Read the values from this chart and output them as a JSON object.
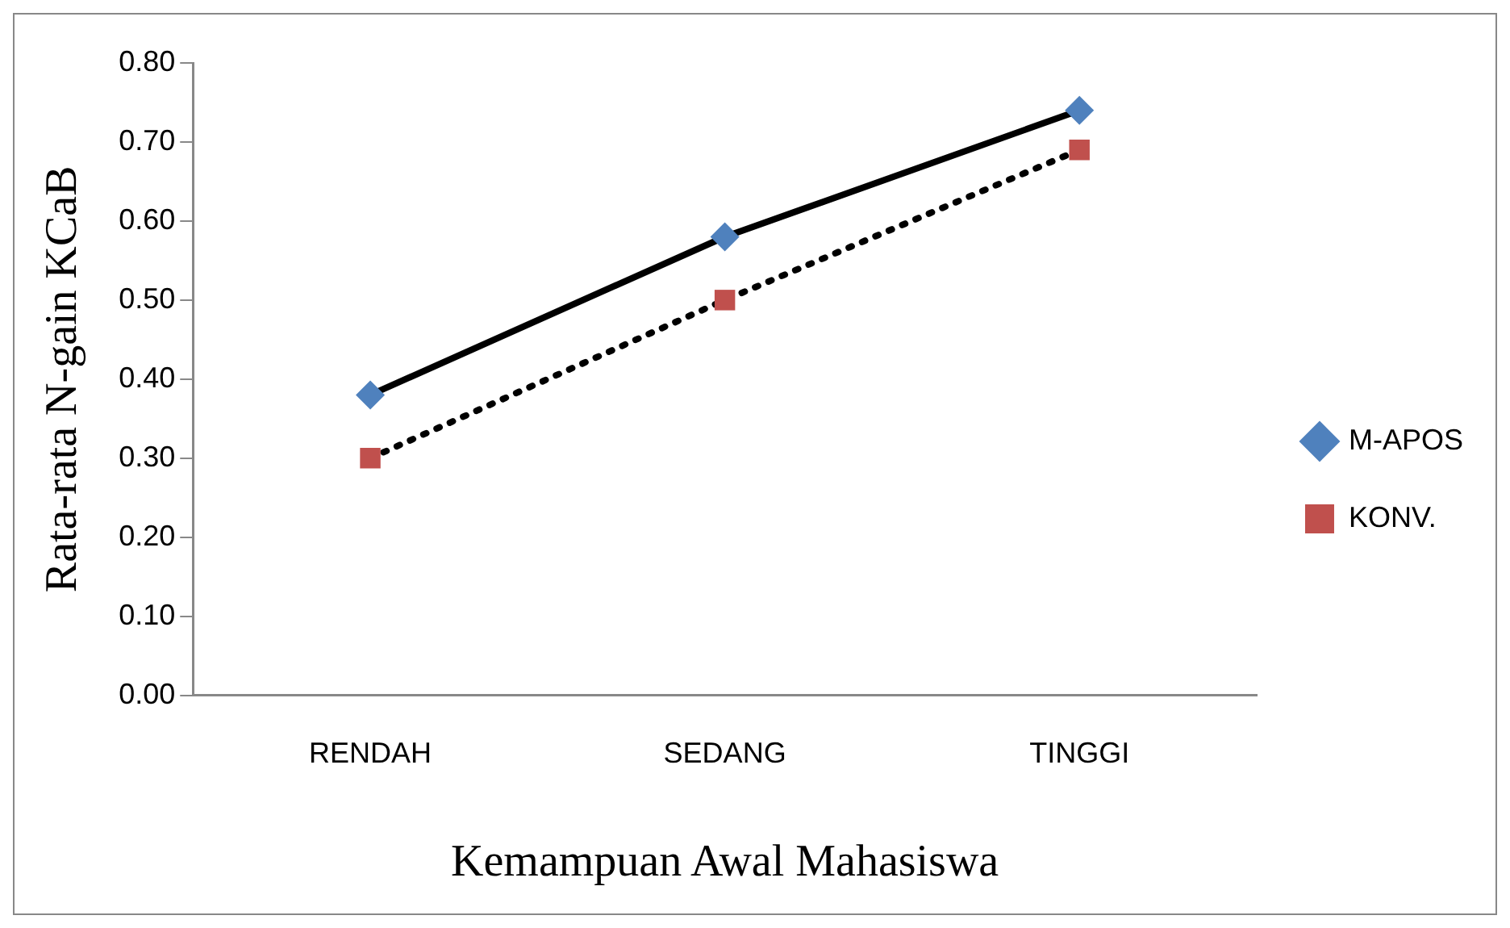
{
  "chart_data": {
    "type": "line",
    "xlabel": "Kemampuan Awal Mahasiswa",
    "ylabel": "Rata-rata N-gain KCaB",
    "categories": [
      "RENDAH",
      "SEDANG",
      "TINGGI"
    ],
    "series": [
      {
        "name": "M-APOS",
        "color": "#4f81bd",
        "values": [
          0.38,
          0.58,
          0.74
        ],
        "marker": "diamond",
        "line_style": "solid"
      },
      {
        "name": "KONV.",
        "color": "#c0504d",
        "values": [
          0.3,
          0.5,
          0.69
        ],
        "marker": "square",
        "line_style": "dotted"
      }
    ],
    "ylim": [
      0,
      0.8
    ],
    "yticks": [
      {
        "value": 0,
        "label": "0.00"
      },
      {
        "value": 0.1,
        "label": "0.10"
      },
      {
        "value": 0.2,
        "label": "0.20"
      },
      {
        "value": 0.3,
        "label": "0.30"
      },
      {
        "value": 0.4,
        "label": "0.40"
      },
      {
        "value": 0.5,
        "label": "0.50"
      },
      {
        "value": 0.6,
        "label": "0.60"
      },
      {
        "value": 0.7,
        "label": "0.70"
      },
      {
        "value": 0.8,
        "label": "0.80"
      }
    ],
    "grid": false,
    "legend": "right"
  }
}
